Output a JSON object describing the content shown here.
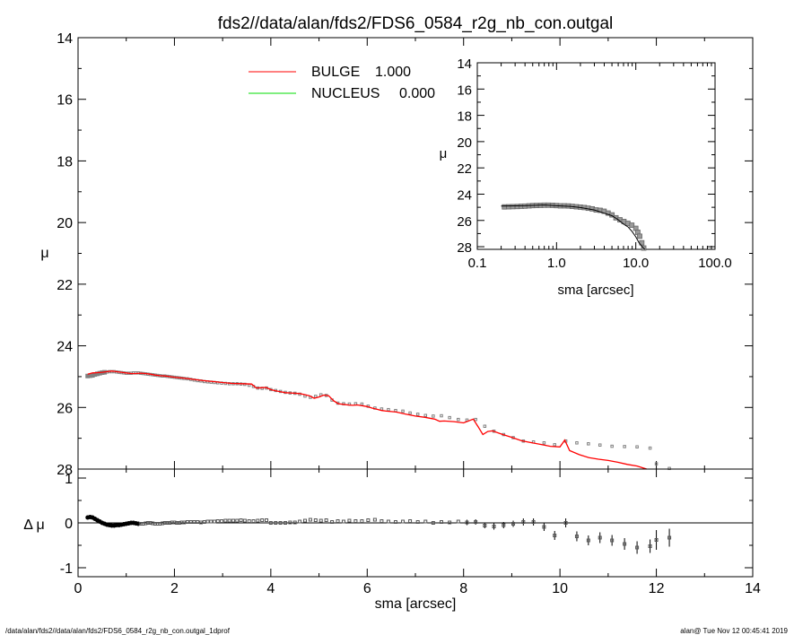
{
  "title": "fds2//data/alan/fds2/FDS6_0584_r2g_nb_con.outgal",
  "footer": {
    "left": "/data/alan/fds2//data/alan/fds2/FDS6_0584_r2g_nb_con.outgal_1dprof",
    "right": "alan@  Tue Nov 12 00:45:41 2019"
  },
  "colors": {
    "bulge": "#ff0000",
    "nucleus": "#00dd00",
    "data": "#808080",
    "resid": "#000000"
  },
  "chart_data": [
    {
      "type": "scatter",
      "role": "main-profile",
      "xlabel": "sma [arcsec]",
      "ylabel": "μ",
      "xlim": [
        0,
        14
      ],
      "ylim": [
        28,
        14
      ],
      "x_ticks": [
        "0",
        "2",
        "4",
        "6",
        "8",
        "10",
        "12",
        "14"
      ],
      "y_ticks": [
        "14",
        "16",
        "18",
        "20",
        "22",
        "24",
        "26",
        "28"
      ],
      "legend": [
        {
          "name": "BULGE",
          "value": "1.000",
          "color": "#ff0000"
        },
        {
          "name": "NUCLEUS",
          "value": "0.000",
          "color": "#00dd00"
        }
      ],
      "series": [
        {
          "name": "data",
          "x": [
            0.2,
            0.25,
            0.3,
            0.35,
            0.4,
            0.45,
            0.5,
            0.55,
            0.6,
            0.65,
            0.7,
            0.75,
            0.8,
            0.85,
            0.9,
            0.95,
            1.0,
            1.05,
            1.1,
            1.15,
            1.2,
            1.25,
            1.3,
            1.35,
            1.4,
            1.45,
            1.5,
            1.55,
            1.6,
            1.65,
            1.7,
            1.75,
            1.8,
            1.85,
            1.9,
            1.95,
            2.0,
            2.05,
            2.1,
            2.15,
            2.2,
            2.27,
            2.34,
            2.41,
            2.48,
            2.55,
            2.62,
            2.69,
            2.76,
            2.83,
            2.9,
            2.98,
            3.06,
            3.14,
            3.22,
            3.3,
            3.38,
            3.46,
            3.55,
            3.64,
            3.73,
            3.82,
            3.91,
            4.0,
            4.1,
            4.2,
            4.3,
            4.4,
            4.5,
            4.6,
            4.71,
            4.82,
            4.93,
            5.04,
            5.15,
            5.27,
            5.39,
            5.51,
            5.63,
            5.76,
            5.89,
            6.02,
            6.16,
            6.3,
            6.44,
            6.59,
            6.74,
            6.89,
            7.05,
            7.21,
            7.37,
            7.54,
            7.71,
            7.89,
            8.07,
            8.25,
            8.44,
            8.63,
            8.83,
            9.03,
            9.24,
            9.45,
            9.67,
            9.89,
            10.12,
            10.35,
            10.59,
            10.83,
            11.08,
            11.34,
            11.6,
            11.87,
            12.0,
            12.27
          ],
          "y": [
            24.98,
            24.97,
            24.96,
            24.93,
            24.91,
            24.89,
            24.87,
            24.86,
            24.85,
            24.84,
            24.84,
            24.84,
            24.85,
            24.86,
            24.87,
            24.88,
            24.89,
            24.89,
            24.89,
            24.88,
            24.88,
            24.88,
            24.89,
            24.9,
            24.91,
            24.92,
            24.93,
            24.94,
            24.95,
            24.96,
            24.97,
            24.98,
            24.98,
            24.99,
            25.0,
            25.01,
            25.02,
            25.03,
            25.04,
            25.05,
            25.06,
            25.07,
            25.09,
            25.11,
            25.13,
            25.14,
            25.16,
            25.17,
            25.18,
            25.19,
            25.2,
            25.21,
            25.22,
            25.23,
            25.23,
            25.23,
            25.24,
            25.25,
            25.28,
            25.32,
            25.37,
            25.38,
            25.37,
            25.42,
            25.45,
            25.48,
            25.51,
            25.53,
            25.54,
            25.57,
            25.63,
            25.67,
            25.64,
            25.59,
            25.61,
            25.76,
            25.86,
            25.88,
            25.89,
            25.88,
            25.89,
            25.96,
            26.02,
            26.05,
            26.07,
            26.1,
            26.12,
            26.18,
            26.22,
            26.26,
            26.28,
            26.27,
            26.33,
            26.39,
            26.41,
            26.39,
            26.61,
            26.77,
            26.88,
            26.98,
            27.09,
            27.12,
            27.15,
            27.21,
            27.09,
            27.15,
            27.18,
            27.22,
            27.26,
            27.27,
            27.28,
            27.32,
            27.83,
            27.98
          ]
        },
        {
          "name": "BULGE",
          "x": [
            0.2,
            0.3,
            0.4,
            0.5,
            0.6,
            0.7,
            0.8,
            0.9,
            1.0,
            1.1,
            1.2,
            1.3,
            1.4,
            1.5,
            1.6,
            1.7,
            1.8,
            1.9,
            2.0,
            2.2,
            2.4,
            2.6,
            2.8,
            3.0,
            3.2,
            3.4,
            3.6,
            3.7,
            3.8,
            3.9,
            4.0,
            4.1,
            4.2,
            4.3,
            4.4,
            4.6,
            4.8,
            4.9,
            5.0,
            5.1,
            5.2,
            5.3,
            5.4,
            5.5,
            5.6,
            5.7,
            5.8,
            6.0,
            6.1,
            6.2,
            6.3,
            6.4,
            6.6,
            6.8,
            7.0,
            7.2,
            7.4,
            7.5,
            7.6,
            7.8,
            8.0,
            8.2,
            8.3,
            8.4,
            8.5,
            8.6,
            8.8,
            9.0,
            9.2,
            9.4,
            9.6,
            9.8,
            10.0,
            10.1,
            10.2,
            10.4,
            10.6,
            10.8,
            11.0,
            11.2,
            11.4,
            11.6,
            11.8
          ],
          "y": [
            24.92,
            24.88,
            24.87,
            24.86,
            24.84,
            24.82,
            24.84,
            24.86,
            24.88,
            24.9,
            24.9,
            24.89,
            24.9,
            24.92,
            24.95,
            24.97,
            24.98,
            25.0,
            25.02,
            25.05,
            25.09,
            25.13,
            25.16,
            25.19,
            25.22,
            25.23,
            25.24,
            25.37,
            25.36,
            25.35,
            25.42,
            25.46,
            25.49,
            25.52,
            25.53,
            25.55,
            25.62,
            25.7,
            25.66,
            25.6,
            25.62,
            25.78,
            25.88,
            25.9,
            25.92,
            25.93,
            25.92,
            25.97,
            26.02,
            26.06,
            26.1,
            26.12,
            26.15,
            26.22,
            26.28,
            26.32,
            26.38,
            26.45,
            26.44,
            26.46,
            26.5,
            26.38,
            26.62,
            26.88,
            26.78,
            26.76,
            26.87,
            26.97,
            27.08,
            27.14,
            27.2,
            27.26,
            27.28,
            27.06,
            27.4,
            27.53,
            27.63,
            27.68,
            27.72,
            27.78,
            27.85,
            27.9,
            28.0
          ]
        }
      ]
    },
    {
      "type": "scatter",
      "role": "residual",
      "xlabel": "sma [arcsec]",
      "ylabel": "Δ μ",
      "xlim": [
        0,
        14
      ],
      "ylim": [
        -1.2,
        1.2
      ],
      "x_ticks": [
        "0",
        "2",
        "4",
        "6",
        "8",
        "10",
        "12",
        "14"
      ],
      "y_ticks": [
        "1",
        "0",
        "-1"
      ],
      "zero_line": true,
      "series": [
        {
          "name": "residual",
          "x": [
            0.2,
            0.25,
            0.3,
            0.35,
            0.4,
            0.45,
            0.5,
            0.55,
            0.6,
            0.65,
            0.7,
            0.75,
            0.8,
            0.85,
            0.9,
            0.95,
            1.0,
            1.05,
            1.1,
            1.15,
            1.2,
            1.25,
            1.3,
            1.35,
            1.4,
            1.45,
            1.5,
            1.55,
            1.6,
            1.65,
            1.7,
            1.75,
            1.8,
            1.85,
            1.9,
            1.95,
            2.0,
            2.05,
            2.1,
            2.15,
            2.2,
            2.27,
            2.34,
            2.41,
            2.48,
            2.55,
            2.62,
            2.69,
            2.76,
            2.83,
            2.9,
            2.98,
            3.06,
            3.14,
            3.22,
            3.3,
            3.38,
            3.46,
            3.55,
            3.64,
            3.73,
            3.82,
            3.91,
            4.0,
            4.1,
            4.2,
            4.3,
            4.4,
            4.5,
            4.6,
            4.71,
            4.82,
            4.93,
            5.04,
            5.15,
            5.27,
            5.39,
            5.51,
            5.63,
            5.76,
            5.89,
            6.02,
            6.16,
            6.3,
            6.44,
            6.59,
            6.74,
            6.89,
            7.05,
            7.21,
            7.37,
            7.54,
            7.71,
            7.89,
            8.07,
            8.25,
            8.44,
            8.63,
            8.83,
            9.03,
            9.24,
            9.45,
            9.67,
            9.89,
            10.12,
            10.35,
            10.59,
            10.83,
            11.08,
            11.34,
            11.6,
            11.87,
            12.0,
            12.27
          ],
          "y": [
            0.12,
            0.13,
            0.12,
            0.09,
            0.06,
            0.03,
            0.0,
            -0.02,
            -0.04,
            -0.05,
            -0.06,
            -0.06,
            -0.05,
            -0.05,
            -0.04,
            -0.03,
            -0.02,
            -0.01,
            0.0,
            0.0,
            -0.01,
            -0.02,
            -0.02,
            -0.02,
            -0.01,
            0.0,
            0.0,
            -0.01,
            -0.02,
            -0.02,
            -0.02,
            -0.01,
            0.0,
            0.0,
            0.0,
            0.01,
            0.01,
            0.0,
            0.0,
            0.01,
            0.01,
            0.02,
            0.02,
            0.02,
            0.02,
            0.01,
            0.02,
            0.03,
            0.03,
            0.03,
            0.04,
            0.04,
            0.05,
            0.05,
            0.05,
            0.05,
            0.06,
            0.05,
            0.04,
            0.04,
            0.05,
            0.06,
            0.06,
            0.0,
            0.0,
            0.0,
            0.0,
            0.01,
            0.01,
            0.03,
            0.05,
            0.07,
            0.06,
            0.05,
            0.06,
            0.02,
            0.04,
            0.03,
            0.05,
            0.04,
            0.04,
            0.06,
            0.07,
            0.04,
            0.03,
            0.02,
            0.03,
            0.04,
            0.02,
            0.03,
            0.0,
            0.02,
            0.01,
            0.03,
            0.01,
            0.02,
            -0.06,
            -0.08,
            -0.05,
            -0.02,
            0.02,
            0.02,
            -0.09,
            -0.28,
            0.0,
            -0.3,
            -0.39,
            -0.33,
            -0.39,
            -0.47,
            -0.55,
            -0.52,
            -0.38,
            -0.33
          ],
          "yerr": [
            0,
            0,
            0,
            0,
            0,
            0,
            0,
            0,
            0,
            0,
            0,
            0,
            0,
            0,
            0,
            0,
            0,
            0,
            0,
            0,
            0,
            0,
            0,
            0,
            0,
            0,
            0,
            0,
            0,
            0,
            0,
            0,
            0,
            0,
            0,
            0,
            0,
            0,
            0,
            0,
            0,
            0,
            0,
            0,
            0,
            0,
            0,
            0,
            0,
            0,
            0,
            0,
            0,
            0,
            0,
            0,
            0,
            0,
            0,
            0,
            0,
            0,
            0,
            0,
            0,
            0,
            0,
            0,
            0,
            0,
            0,
            0,
            0,
            0,
            0,
            0,
            0,
            0,
            0,
            0,
            0,
            0,
            0,
            0,
            0,
            0,
            0,
            0,
            0,
            0,
            0,
            0,
            0,
            0,
            0.06,
            0.06,
            0.06,
            0.07,
            0.07,
            0.07,
            0.08,
            0.08,
            0.09,
            0.1,
            0.1,
            0.11,
            0.11,
            0.12,
            0.12,
            0.13,
            0.14,
            0.15,
            0.22,
            0.2
          ]
        }
      ]
    },
    {
      "type": "scatter",
      "role": "inset-log",
      "xlabel": "sma [arcsec]",
      "ylabel": "μ",
      "x_log": true,
      "xlim": [
        0.1,
        100.0
      ],
      "ylim": [
        28.2,
        14
      ],
      "x_ticks": [
        "0.1",
        "1.0",
        "10.0",
        "100.0"
      ],
      "y_ticks": [
        "14",
        "16",
        "18",
        "20",
        "22",
        "24",
        "26",
        "28"
      ],
      "series": [
        {
          "name": "data",
          "x": [
            0.22,
            0.25,
            0.28,
            0.32,
            0.36,
            0.4,
            0.45,
            0.5,
            0.56,
            0.63,
            0.7,
            0.79,
            0.89,
            1.0,
            1.12,
            1.26,
            1.41,
            1.58,
            1.78,
            2.0,
            2.24,
            2.51,
            2.82,
            3.16,
            3.55,
            3.98,
            4.47,
            5.01,
            5.62,
            6.31,
            7.08,
            7.94,
            8.91,
            10.0,
            10.6,
            11.2,
            11.9,
            12.6
          ],
          "y": [
            24.97,
            24.96,
            24.95,
            24.94,
            24.92,
            24.91,
            24.89,
            24.87,
            24.86,
            24.85,
            24.84,
            24.84,
            24.85,
            24.87,
            24.89,
            24.89,
            24.9,
            24.93,
            24.96,
            24.99,
            25.02,
            25.07,
            25.12,
            25.2,
            25.23,
            25.3,
            25.44,
            25.58,
            25.8,
            25.95,
            26.08,
            26.22,
            26.36,
            26.6,
            26.9,
            27.2,
            27.7,
            28.1
          ]
        },
        {
          "name": "model",
          "x": [
            0.2,
            0.4,
            0.7,
            1.0,
            1.5,
            2.0,
            3.0,
            4.0,
            5.0,
            6.0,
            7.0,
            8.0,
            9.0,
            10.0,
            11.0,
            12.0,
            13.0
          ],
          "y": [
            24.9,
            24.88,
            24.82,
            24.88,
            24.93,
            25.02,
            25.2,
            25.45,
            25.64,
            25.95,
            26.28,
            26.5,
            26.85,
            27.25,
            27.7,
            28.0,
            28.4
          ]
        }
      ]
    }
  ]
}
